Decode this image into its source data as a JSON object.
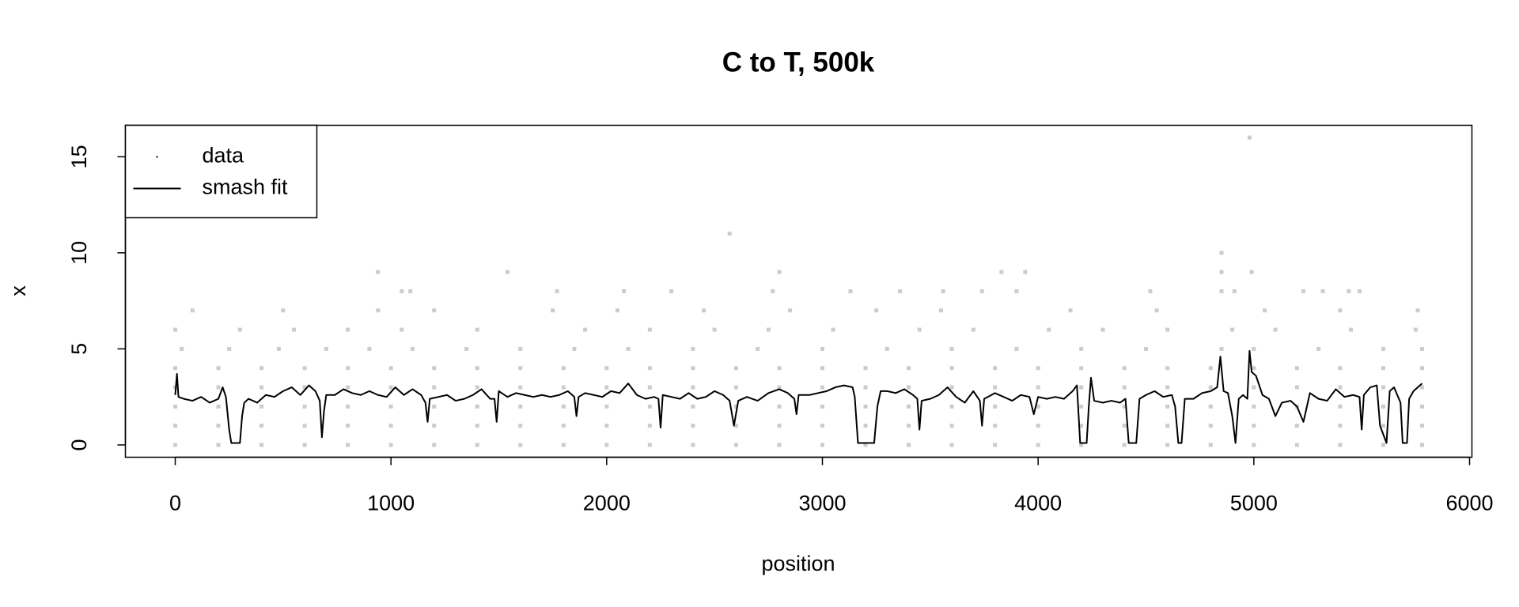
{
  "chart_data": {
    "type": "scatter",
    "title": "C to T, 500k",
    "x_label": "position",
    "y_label": "x",
    "xlim": [
      -231,
      6011
    ],
    "ylim": [
      -0.64,
      16.64
    ],
    "xticks": [
      0,
      1000,
      2000,
      3000,
      4000,
      5000,
      6000
    ],
    "yticks": [
      0,
      5,
      10,
      15
    ],
    "legend": "topleft",
    "grid": false,
    "series": [
      {
        "name": "data",
        "type": "scatter",
        "color": "#cccccc",
        "x": [
          0,
          200,
          400,
          600,
          800,
          1000,
          1200,
          1400,
          1600,
          1800,
          2000,
          2200,
          2400,
          2600,
          2800,
          3000,
          3200,
          3400,
          3600,
          3800,
          4000,
          4200,
          4400,
          4600,
          4800,
          5000,
          5200,
          5400,
          5600,
          5780,
          0,
          200,
          400,
          600,
          800,
          1000,
          1200,
          1400,
          1600,
          1800,
          2000,
          2200,
          2400,
          2600,
          2800,
          3000,
          3200,
          3400,
          3600,
          3800,
          4000,
          4200,
          4400,
          4600,
          4800,
          5000,
          5200,
          5400,
          5600,
          5780,
          0,
          200,
          400,
          600,
          800,
          1000,
          1200,
          1400,
          1600,
          1800,
          2000,
          2200,
          2400,
          2600,
          2800,
          3000,
          3200,
          3400,
          3600,
          3800,
          4000,
          4200,
          4400,
          4600,
          4800,
          5000,
          5200,
          5400,
          5600,
          5780,
          0,
          200,
          400,
          600,
          800,
          1000,
          1200,
          1400,
          1600,
          1800,
          2000,
          2200,
          2400,
          2600,
          2800,
          3000,
          3200,
          3400,
          3600,
          3800,
          4000,
          4200,
          4400,
          4600,
          4800,
          5000,
          5200,
          5400,
          5600,
          5780,
          0,
          200,
          400,
          600,
          800,
          1000,
          1200,
          1400,
          1600,
          1800,
          2000,
          2200,
          2400,
          2600,
          2800,
          3000,
          3200,
          3400,
          3600,
          3800,
          4000,
          4200,
          4400,
          4600,
          4800,
          5000,
          5200,
          5400,
          5600,
          5780,
          30,
          250,
          480,
          700,
          900,
          1100,
          1350,
          1600,
          1850,
          2100,
          2400,
          2700,
          3000,
          3300,
          3600,
          3900,
          4200,
          4500,
          4850,
          5000,
          5300,
          5600,
          5780,
          0,
          300,
          550,
          800,
          1050,
          1400,
          1900,
          2200,
          2500,
          2750,
          3050,
          3450,
          3700,
          4050,
          4300,
          4600,
          4900,
          5100,
          5450,
          5750,
          80,
          500,
          940,
          1200,
          1750,
          2050,
          2450,
          2850,
          3250,
          3550,
          4150,
          4550,
          5050,
          5400,
          5760,
          1050,
          1090,
          1770,
          2080,
          2300,
          2770,
          3130,
          3360,
          3560,
          3740,
          3900,
          4520,
          4850,
          4910,
          5230,
          5320,
          5440,
          5490,
          940,
          1540,
          2800,
          3830,
          3940,
          4850,
          4990,
          4850,
          2570,
          4980
        ],
        "values": [
          0,
          0,
          0,
          0,
          0,
          0,
          0,
          0,
          0,
          0,
          0,
          0,
          0,
          0,
          0,
          0,
          0,
          0,
          0,
          0,
          0,
          0,
          0,
          0,
          0,
          0,
          0,
          0,
          0,
          0,
          1,
          1,
          1,
          1,
          1,
          1,
          1,
          1,
          1,
          1,
          1,
          1,
          1,
          1,
          1,
          1,
          1,
          1,
          1,
          1,
          1,
          1,
          1,
          1,
          1,
          1,
          1,
          1,
          1,
          1,
          2,
          2,
          2,
          2,
          2,
          2,
          2,
          2,
          2,
          2,
          2,
          2,
          2,
          2,
          2,
          2,
          2,
          2,
          2,
          2,
          2,
          2,
          2,
          2,
          2,
          2,
          2,
          2,
          2,
          2,
          3,
          3,
          3,
          3,
          3,
          3,
          3,
          3,
          3,
          3,
          3,
          3,
          3,
          3,
          3,
          3,
          3,
          3,
          3,
          3,
          3,
          3,
          3,
          3,
          3,
          3,
          3,
          3,
          3,
          3,
          4,
          4,
          4,
          4,
          4,
          4,
          4,
          4,
          4,
          4,
          4,
          4,
          4,
          4,
          4,
          4,
          4,
          4,
          4,
          4,
          4,
          4,
          4,
          4,
          4,
          4,
          4,
          4,
          4,
          4,
          5,
          5,
          5,
          5,
          5,
          5,
          5,
          5,
          5,
          5,
          5,
          5,
          5,
          5,
          5,
          5,
          5,
          5,
          5,
          5,
          5,
          5,
          5,
          6,
          6,
          6,
          6,
          6,
          6,
          6,
          6,
          6,
          6,
          6,
          6,
          6,
          6,
          6,
          6,
          6,
          6,
          6,
          6,
          7,
          7,
          7,
          7,
          7,
          7,
          7,
          7,
          7,
          7,
          7,
          7,
          7,
          7,
          7,
          8,
          8,
          8,
          8,
          8,
          8,
          8,
          8,
          8,
          8,
          8,
          8,
          8,
          8,
          8,
          8,
          8,
          8,
          9,
          9,
          9,
          9,
          9,
          9,
          9,
          10,
          11,
          16
        ]
      },
      {
        "name": "smash fit",
        "type": "line",
        "color": "#000000",
        "x": [
          0,
          8,
          15,
          40,
          80,
          120,
          160,
          200,
          220,
          235,
          250,
          260,
          300,
          310,
          320,
          340,
          380,
          420,
          460,
          500,
          540,
          580,
          620,
          650,
          670,
          680,
          690,
          700,
          740,
          780,
          820,
          860,
          900,
          940,
          980,
          1020,
          1060,
          1100,
          1140,
          1160,
          1170,
          1180,
          1220,
          1260,
          1300,
          1340,
          1380,
          1420,
          1460,
          1480,
          1490,
          1500,
          1540,
          1580,
          1620,
          1660,
          1700,
          1740,
          1780,
          1820,
          1850,
          1860,
          1870,
          1900,
          1940,
          1980,
          2020,
          2060,
          2100,
          2140,
          2180,
          2220,
          2240,
          2250,
          2260,
          2300,
          2340,
          2380,
          2420,
          2460,
          2500,
          2540,
          2570,
          2590,
          2610,
          2650,
          2700,
          2750,
          2800,
          2840,
          2870,
          2880,
          2890,
          2940,
          2980,
          3020,
          3060,
          3100,
          3140,
          3150,
          3165,
          3240,
          3255,
          3270,
          3300,
          3340,
          3380,
          3420,
          3440,
          3450,
          3460,
          3500,
          3540,
          3580,
          3620,
          3660,
          3700,
          3730,
          3740,
          3750,
          3800,
          3840,
          3880,
          3920,
          3960,
          3980,
          4000,
          4040,
          4080,
          4120,
          4160,
          4180,
          4195,
          4225,
          4235,
          4245,
          4260,
          4300,
          4340,
          4380,
          4405,
          4420,
          4455,
          4470,
          4500,
          4540,
          4580,
          4620,
          4635,
          4650,
          4665,
          4680,
          4720,
          4760,
          4800,
          4830,
          4845,
          4860,
          4880,
          4900,
          4915,
          4930,
          4950,
          4970,
          4980,
          4990,
          5010,
          5040,
          5070,
          5100,
          5130,
          5170,
          5200,
          5230,
          5260,
          5300,
          5340,
          5380,
          5420,
          5460,
          5490,
          5500,
          5510,
          5540,
          5570,
          5585,
          5615,
          5630,
          5650,
          5680,
          5690,
          5710,
          5720,
          5740,
          5760,
          5780
        ],
        "values": [
          2.6,
          3.7,
          2.5,
          2.4,
          2.3,
          2.5,
          2.2,
          2.4,
          3.0,
          2.5,
          0.8,
          0.1,
          0.1,
          1.5,
          2.2,
          2.4,
          2.2,
          2.6,
          2.5,
          2.8,
          3.0,
          2.6,
          3.1,
          2.8,
          2.3,
          0.4,
          1.8,
          2.6,
          2.6,
          2.9,
          2.7,
          2.6,
          2.8,
          2.6,
          2.5,
          3.0,
          2.6,
          2.9,
          2.6,
          2.2,
          1.2,
          2.4,
          2.5,
          2.6,
          2.3,
          2.4,
          2.6,
          2.9,
          2.4,
          2.4,
          1.2,
          2.8,
          2.5,
          2.7,
          2.6,
          2.5,
          2.6,
          2.5,
          2.6,
          2.8,
          2.5,
          1.5,
          2.5,
          2.7,
          2.6,
          2.5,
          2.8,
          2.7,
          3.2,
          2.6,
          2.4,
          2.5,
          2.4,
          0.9,
          2.6,
          2.5,
          2.4,
          2.7,
          2.4,
          2.5,
          2.8,
          2.6,
          2.3,
          1.0,
          2.3,
          2.5,
          2.3,
          2.7,
          2.9,
          2.7,
          2.4,
          1.6,
          2.6,
          2.6,
          2.7,
          2.8,
          3.0,
          3.1,
          3.0,
          2.5,
          0.1,
          0.1,
          2.0,
          2.8,
          2.8,
          2.7,
          2.9,
          2.6,
          2.4,
          0.8,
          2.3,
          2.4,
          2.6,
          3.0,
          2.5,
          2.2,
          2.8,
          2.3,
          1.0,
          2.4,
          2.7,
          2.5,
          2.3,
          2.6,
          2.5,
          1.6,
          2.5,
          2.4,
          2.5,
          2.4,
          2.8,
          3.1,
          0.1,
          0.1,
          2.0,
          3.5,
          2.3,
          2.2,
          2.3,
          2.2,
          2.4,
          0.1,
          0.1,
          2.4,
          2.6,
          2.8,
          2.5,
          2.6,
          2.0,
          0.1,
          0.1,
          2.4,
          2.4,
          2.7,
          2.8,
          3.0,
          4.6,
          2.8,
          2.7,
          1.5,
          0.1,
          2.4,
          2.6,
          2.4,
          4.9,
          3.8,
          3.6,
          2.6,
          2.4,
          1.5,
          2.2,
          2.3,
          2.0,
          1.2,
          2.7,
          2.4,
          2.3,
          2.9,
          2.5,
          2.6,
          2.5,
          0.8,
          2.6,
          3.0,
          3.1,
          1.0,
          0.1,
          2.8,
          3.0,
          2.2,
          0.1,
          0.1,
          2.4,
          2.8,
          3.0,
          3.2
        ]
      }
    ]
  }
}
